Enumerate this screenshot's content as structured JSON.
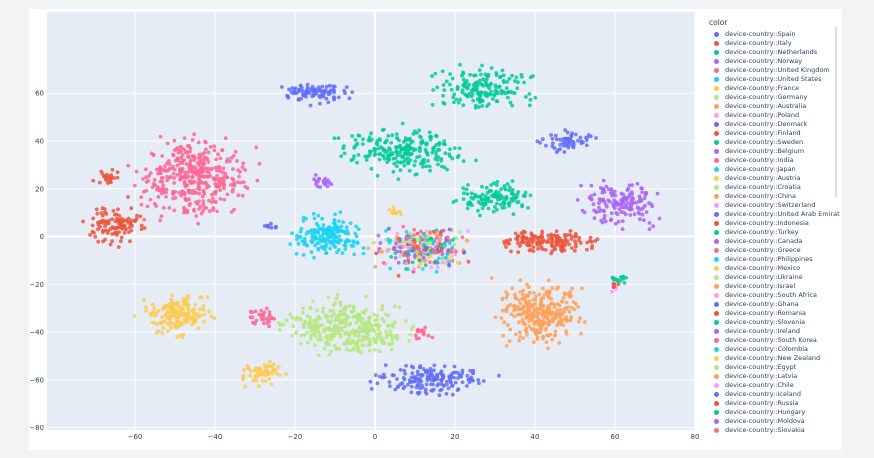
{
  "chart_data": {
    "type": "scatter",
    "title": "",
    "xlabel": "",
    "ylabel": "",
    "xlim": [
      -82,
      80
    ],
    "ylim": [
      -81,
      94
    ],
    "x_ticks": [
      -60,
      -40,
      -20,
      0,
      20,
      40,
      60,
      80
    ],
    "x_tick_labels": [
      "−60",
      "−40",
      "−20",
      "0",
      "20",
      "40",
      "60",
      "80"
    ],
    "y_ticks": [
      -80,
      -60,
      -40,
      -20,
      0,
      20,
      40,
      60
    ],
    "y_tick_labels": [
      "−80",
      "−60",
      "−40",
      "−20",
      "0",
      "20",
      "40",
      "60"
    ],
    "plot_background": "#e5ecf6",
    "grid": true,
    "legend_title": "color",
    "legend_position": "right",
    "series": [
      {
        "name": "device-country::Spain",
        "color": "#636efa",
        "clusters": [
          {
            "cx": -15,
            "cy": 60,
            "rx": 11,
            "ry": 6,
            "n": 90
          },
          {
            "cx": 14,
            "cy": -60,
            "rx": 21,
            "ry": 9,
            "n": 170
          },
          {
            "cx": 48,
            "cy": 40,
            "rx": 12,
            "ry": 7,
            "n": 60
          },
          {
            "cx": -26,
            "cy": 4,
            "rx": 3,
            "ry": 2,
            "n": 8
          }
        ]
      },
      {
        "name": "device-country::Italy",
        "color": "#EF553B",
        "clusters": [
          {
            "cx": -65,
            "cy": 5,
            "rx": 10,
            "ry": 14,
            "n": 110
          },
          {
            "cx": -67,
            "cy": 25,
            "rx": 5,
            "ry": 5,
            "n": 25
          },
          {
            "cx": 43,
            "cy": -2,
            "rx": 19,
            "ry": 8,
            "n": 150
          }
        ]
      },
      {
        "name": "device-country::Netherlands",
        "color": "#00cc96",
        "clusters": [
          {
            "cx": 7,
            "cy": 36,
            "rx": 24,
            "ry": 15,
            "n": 230
          },
          {
            "cx": 27,
            "cy": 62,
            "rx": 19,
            "ry": 15,
            "n": 170
          },
          {
            "cx": 30,
            "cy": 16,
            "rx": 17,
            "ry": 10,
            "n": 120
          }
        ]
      },
      {
        "name": "device-country::Norway",
        "color": "#ab63fa",
        "clusters": [
          {
            "cx": 61,
            "cy": 14,
            "rx": 15,
            "ry": 14,
            "n": 150
          },
          {
            "cx": -13,
            "cy": 23,
            "rx": 5,
            "ry": 4,
            "n": 20
          }
        ]
      },
      {
        "name": "device-country::United Kingdom",
        "color": "#FF6692",
        "clusters": [
          {
            "cx": -45,
            "cy": 25,
            "rx": 22,
            "ry": 26,
            "n": 380
          },
          {
            "cx": -28,
            "cy": -34,
            "rx": 5,
            "ry": 7,
            "n": 30
          },
          {
            "cx": 12,
            "cy": -40,
            "rx": 4,
            "ry": 4,
            "n": 15
          }
        ]
      },
      {
        "name": "device-country::United States",
        "color": "#19d3f3",
        "clusters": [
          {
            "cx": -12,
            "cy": 0,
            "rx": 13,
            "ry": 13,
            "n": 180
          }
        ]
      },
      {
        "name": "device-country::France",
        "color": "#FECB52",
        "clusters": [
          {
            "cx": -49,
            "cy": -33,
            "rx": 13,
            "ry": 12,
            "n": 170
          },
          {
            "cx": -28,
            "cy": -57,
            "rx": 8,
            "ry": 9,
            "n": 70
          },
          {
            "cx": 5,
            "cy": 10,
            "rx": 3,
            "ry": 3,
            "n": 10
          }
        ]
      },
      {
        "name": "device-country::Germany",
        "color": "#B6E880",
        "clusters": [
          {
            "cx": -7,
            "cy": -38,
            "rx": 23,
            "ry": 18,
            "n": 340
          }
        ]
      },
      {
        "name": "device-country::Australia",
        "color": "#FFA15A",
        "clusters": [
          {
            "cx": 42,
            "cy": -32,
            "rx": 17,
            "ry": 19,
            "n": 300
          }
        ]
      },
      {
        "name": "device-country::Poland",
        "color": "#FF97FF",
        "clusters": [
          {
            "cx": 60,
            "cy": -22,
            "rx": 2,
            "ry": 3,
            "n": 5
          }
        ]
      },
      {
        "name": "device-country::Denmark",
        "color": "#636efa",
        "clusters": []
      },
      {
        "name": "device-country::Finland",
        "color": "#EF553B",
        "clusters": [
          {
            "cx": 60,
            "cy": -20,
            "rx": 3,
            "ry": 3,
            "n": 6
          }
        ]
      },
      {
        "name": "device-country::Sweden",
        "color": "#00cc96",
        "clusters": [
          {
            "cx": 61,
            "cy": -18,
            "rx": 4,
            "ry": 3,
            "n": 14
          }
        ]
      },
      {
        "name": "device-country::Belgium",
        "color": "#ab63fa",
        "clusters": []
      },
      {
        "name": "device-country::India",
        "color": "#FF6692",
        "clusters": []
      },
      {
        "name": "device-country::Japan",
        "color": "#19d3f3",
        "clusters": []
      },
      {
        "name": "device-country::Austria",
        "color": "#FECB52",
        "clusters": []
      },
      {
        "name": "device-country::Croatia",
        "color": "#B6E880",
        "clusters": []
      },
      {
        "name": "device-country::China",
        "color": "#FFA15A",
        "clusters": []
      },
      {
        "name": "device-country::Switzerland",
        "color": "#FF97FF",
        "clusters": []
      },
      {
        "name": "device-country::United Arab Emirates",
        "color": "#636efa",
        "clusters": []
      },
      {
        "name": "device-country::Indonesia",
        "color": "#EF553B",
        "clusters": []
      },
      {
        "name": "device-country::Turkey",
        "color": "#00cc96",
        "clusters": []
      },
      {
        "name": "device-country::Canada",
        "color": "#ab63fa",
        "clusters": []
      },
      {
        "name": "device-country::Greece",
        "color": "#FF6692",
        "clusters": []
      },
      {
        "name": "device-country::Philippines",
        "color": "#19d3f3",
        "clusters": []
      },
      {
        "name": "device-country::Mexico",
        "color": "#FECB52",
        "clusters": []
      },
      {
        "name": "device-country::Ukraine",
        "color": "#B6E880",
        "clusters": []
      },
      {
        "name": "device-country::Israel",
        "color": "#FFA15A",
        "clusters": []
      },
      {
        "name": "device-country::South Africa",
        "color": "#FF97FF",
        "clusters": []
      },
      {
        "name": "device-country::Ghana",
        "color": "#636efa",
        "clusters": []
      },
      {
        "name": "device-country::Romania",
        "color": "#EF553B",
        "clusters": []
      },
      {
        "name": "device-country::Slovenia",
        "color": "#00cc96",
        "clusters": []
      },
      {
        "name": "device-country::Ireland",
        "color": "#ab63fa",
        "clusters": []
      },
      {
        "name": "device-country::South Korea",
        "color": "#FF6692",
        "clusters": []
      },
      {
        "name": "device-country::Colombia",
        "color": "#19d3f3",
        "clusters": []
      },
      {
        "name": "device-country::New Zealand",
        "color": "#FECB52",
        "clusters": []
      },
      {
        "name": "device-country::Egypt",
        "color": "#B6E880",
        "clusters": []
      },
      {
        "name": "device-country::Latvia",
        "color": "#FFA15A",
        "clusters": []
      },
      {
        "name": "device-country::Chile",
        "color": "#FF97FF",
        "clusters": []
      },
      {
        "name": "device-country::Iceland",
        "color": "#636efa",
        "clusters": []
      },
      {
        "name": "device-country::Russia",
        "color": "#EF553B",
        "clusters": []
      },
      {
        "name": "device-country::Hungary",
        "color": "#00cc96",
        "clusters": []
      },
      {
        "name": "device-country::Moldova",
        "color": "#ab63fa",
        "clusters": []
      },
      {
        "name": "device-country::Slovakia",
        "color": "#FF6692",
        "clusters": []
      }
    ],
    "mixed_region": {
      "cx": 12,
      "cy": -5,
      "rx": 18,
      "ry": 14,
      "n": 320
    }
  }
}
